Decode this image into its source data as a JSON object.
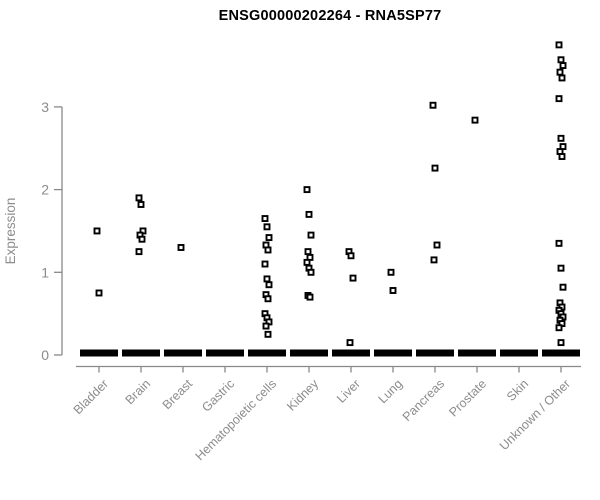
{
  "header": {
    "title": "ENSG00000202264 - RNA5SP77"
  },
  "colors": {
    "axis_line": "#898989",
    "tick_label": "#8c8c8c",
    "axis_title": "#8c8c8c",
    "chart_title": "#000000",
    "point": "#000000",
    "zero_bar": "#000000",
    "background": "#ffffff"
  },
  "chart_data": {
    "type": "scatter",
    "title": "ENSG00000202264 - RNA5SP77",
    "xlabel": "",
    "ylabel": "Expression",
    "ylim": [
      0,
      3.9
    ],
    "yticks": [
      0,
      1,
      2,
      3
    ],
    "grid": false,
    "legend": "none",
    "marker": "open-square",
    "x_label_rotation_deg": 45,
    "note": "Thick black dash at y=0 in every category represents many overlapping samples with zero expression",
    "categories": [
      "Bladder",
      "Brain",
      "Breast",
      "Gastric",
      "Hematopoietic cells",
      "Kidney",
      "Liver",
      "Lung",
      "Pancreas",
      "Prostate",
      "Skin",
      "Unknown / Other"
    ],
    "series": [
      {
        "name": "Bladder",
        "zero_bar": true,
        "values": [
          1.5,
          0.75
        ]
      },
      {
        "name": "Brain",
        "zero_bar": true,
        "values": [
          1.9,
          1.82,
          1.5,
          1.45,
          1.4,
          1.25
        ]
      },
      {
        "name": "Breast",
        "zero_bar": true,
        "values": [
          1.3
        ]
      },
      {
        "name": "Gastric",
        "zero_bar": true,
        "values": []
      },
      {
        "name": "Hematopoietic cells",
        "zero_bar": true,
        "values": [
          1.65,
          1.55,
          1.42,
          1.33,
          1.27,
          1.1,
          0.92,
          0.85,
          0.73,
          0.68,
          0.5,
          0.45,
          0.4,
          0.35,
          0.25
        ]
      },
      {
        "name": "Kidney",
        "zero_bar": true,
        "values": [
          2.0,
          1.7,
          1.45,
          1.25,
          1.18,
          1.12,
          1.05,
          1.0,
          0.72,
          0.7
        ]
      },
      {
        "name": "Liver",
        "zero_bar": true,
        "values": [
          1.25,
          1.2,
          0.93,
          0.15
        ]
      },
      {
        "name": "Lung",
        "zero_bar": true,
        "values": [
          1.0,
          0.78
        ]
      },
      {
        "name": "Pancreas",
        "zero_bar": true,
        "values": [
          3.02,
          2.26,
          1.33,
          1.15
        ]
      },
      {
        "name": "Prostate",
        "zero_bar": true,
        "values": [
          2.84
        ]
      },
      {
        "name": "Skin",
        "zero_bar": true,
        "values": []
      },
      {
        "name": "Unknown / Other",
        "zero_bar": true,
        "values": [
          3.75,
          3.57,
          3.5,
          3.42,
          3.35,
          3.1,
          2.62,
          2.52,
          2.46,
          2.4,
          1.35,
          1.05,
          0.82,
          0.63,
          0.58,
          0.54,
          0.5,
          0.46,
          0.42,
          0.38,
          0.33,
          0.15
        ]
      }
    ]
  }
}
